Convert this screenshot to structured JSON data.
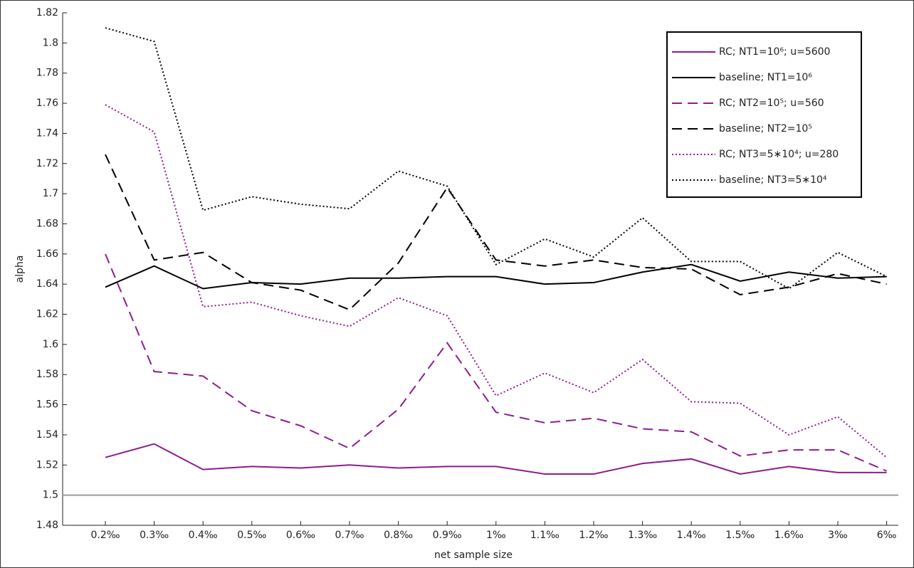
{
  "chart_data": {
    "type": "line",
    "x_label": "net sample size",
    "y_label": "alpha",
    "categories": [
      "0.2‰",
      "0.3‰",
      "0.4‰",
      "0.5‰",
      "0.6‰",
      "0.7‰",
      "0.8‰",
      "0.9‰",
      "1‰",
      "1.1‰",
      "1.2‰",
      "1.3‰",
      "1.4‰",
      "1.5‰",
      "1.6‰",
      "3‰",
      "6‰"
    ],
    "ylim": [
      1.48,
      1.82
    ],
    "yticks": [
      1.48,
      1.5,
      1.52,
      1.54,
      1.56,
      1.58,
      1.6,
      1.62,
      1.64,
      1.66,
      1.68,
      1.7,
      1.72,
      1.74,
      1.76,
      1.78,
      1.8,
      1.82
    ],
    "reference_line": {
      "value": 1.5,
      "color": "#9a9a9a"
    },
    "legend": "upper right",
    "series": [
      {
        "name": "RC; NT1=10⁶; u=5600",
        "color": "#8e1c8e",
        "dash": "solid",
        "values": [
          1.525,
          1.534,
          1.517,
          1.519,
          1.518,
          1.52,
          1.518,
          1.519,
          1.519,
          1.514,
          1.514,
          1.521,
          1.524,
          1.514,
          1.519,
          1.515,
          1.515
        ]
      },
      {
        "name": "baseline; NT1=10⁶",
        "color": "#000000",
        "dash": "solid",
        "values": [
          1.638,
          1.652,
          1.637,
          1.641,
          1.64,
          1.644,
          1.644,
          1.645,
          1.645,
          1.64,
          1.641,
          1.648,
          1.653,
          1.642,
          1.648,
          1.644,
          1.645
        ]
      },
      {
        "name": "RC; NT2=10⁵; u=560",
        "color": "#8e1c8e",
        "dash": "dashed",
        "values": [
          1.66,
          1.582,
          1.579,
          1.556,
          1.546,
          1.531,
          1.557,
          1.601,
          1.555,
          1.548,
          1.551,
          1.544,
          1.542,
          1.526,
          1.53,
          1.53,
          1.516
        ]
      },
      {
        "name": "baseline; NT2=10⁵",
        "color": "#000000",
        "dash": "dashed",
        "values": [
          1.726,
          1.656,
          1.661,
          1.641,
          1.636,
          1.623,
          1.654,
          1.704,
          1.656,
          1.652,
          1.656,
          1.651,
          1.65,
          1.633,
          1.638,
          1.647,
          1.64
        ]
      },
      {
        "name": "RC; NT3=5∗10⁴; u=280",
        "color": "#8e1c8e",
        "dash": "dotted",
        "values": [
          1.759,
          1.741,
          1.625,
          1.628,
          1.619,
          1.612,
          1.631,
          1.619,
          1.566,
          1.581,
          1.568,
          1.59,
          1.562,
          1.561,
          1.54,
          1.552,
          1.525
        ]
      },
      {
        "name": "baseline; NT3=5∗10⁴",
        "color": "#000000",
        "dash": "dotted",
        "values": [
          1.81,
          1.801,
          1.689,
          1.698,
          1.693,
          1.69,
          1.715,
          1.705,
          1.653,
          1.67,
          1.658,
          1.684,
          1.655,
          1.655,
          1.637,
          1.661,
          1.645
        ]
      }
    ]
  }
}
